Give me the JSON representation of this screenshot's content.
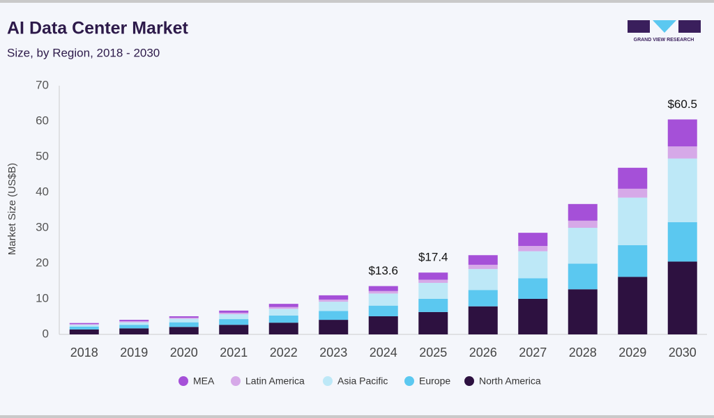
{
  "brand": "GRAND VIEW RESEARCH",
  "chart_data": {
    "type": "stacked-bar",
    "title": "AI Data Center Market",
    "subtitle": "Size, by Region, 2018 - 2030",
    "y_axis_label": "Market Size (US$B)",
    "categories": [
      "2018",
      "2019",
      "2020",
      "2021",
      "2022",
      "2023",
      "2024",
      "2025",
      "2026",
      "2027",
      "2028",
      "2029",
      "2030"
    ],
    "series": [
      {
        "name": "North America",
        "color": "#2d1140",
        "values": [
          1.4,
          1.7,
          2.1,
          2.7,
          3.3,
          4.1,
          5.1,
          6.3,
          7.9,
          10.0,
          12.7,
          16.2,
          20.5
        ]
      },
      {
        "name": "Europe",
        "color": "#5bc8f0",
        "values": [
          0.8,
          1.0,
          1.3,
          1.6,
          2.0,
          2.5,
          3.0,
          3.7,
          4.6,
          5.8,
          7.2,
          8.9,
          11.1
        ]
      },
      {
        "name": "Asia Pacific",
        "color": "#bde8f7",
        "values": [
          0.5,
          0.7,
          1.0,
          1.4,
          1.9,
          2.6,
          3.4,
          4.5,
          5.9,
          7.6,
          10.1,
          13.4,
          17.9
        ]
      },
      {
        "name": "Latin America",
        "color": "#d6a9e8",
        "values": [
          0.2,
          0.3,
          0.3,
          0.4,
          0.5,
          0.6,
          0.7,
          0.9,
          1.2,
          1.5,
          2.0,
          2.5,
          3.4
        ]
      },
      {
        "name": "MEA",
        "color": "#a550d8",
        "values": [
          0.3,
          0.4,
          0.4,
          0.6,
          0.9,
          1.2,
          1.4,
          2.0,
          2.7,
          3.7,
          4.7,
          5.9,
          7.6
        ]
      }
    ],
    "totals": [
      null,
      null,
      null,
      null,
      null,
      null,
      13.6,
      17.4,
      null,
      null,
      null,
      null,
      60.5
    ],
    "total_labels": [
      null,
      null,
      null,
      null,
      null,
      null,
      "$13.6",
      "$17.4",
      null,
      null,
      null,
      null,
      "$60.5"
    ],
    "ylim": [
      0,
      70
    ],
    "yticks": [
      0,
      10,
      20,
      30,
      40,
      50,
      60,
      70
    ],
    "grid": false,
    "legend": "bottom"
  }
}
